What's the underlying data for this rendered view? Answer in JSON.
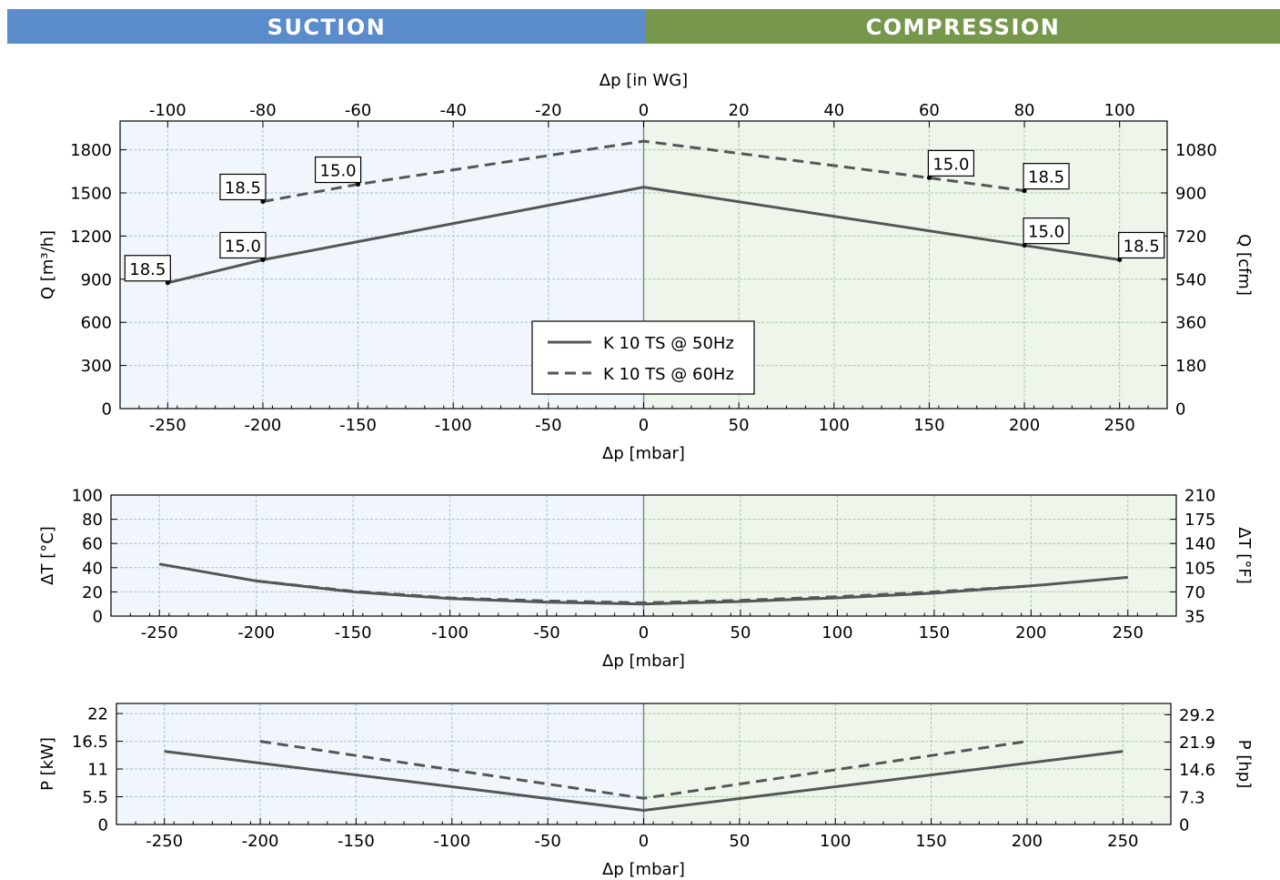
{
  "banner": {
    "left": "SUCTION",
    "right": "COMPRESSION"
  },
  "colors": {
    "suction_bg": "#f1f6fd",
    "compression_bg": "#eef5ea",
    "suction_banner": "#5a8ccc",
    "compression_banner": "#76974c",
    "series": "#535856",
    "grid_suction": "#a9bfd3",
    "grid_compression": "#a9c7a0"
  },
  "legend": {
    "solid_label": "K 10 TS @ 50Hz",
    "dashed_label": "K 10 TS @ 60Hz"
  },
  "chart_data": [
    {
      "type": "line",
      "title": "",
      "xlabel": "Δp [mbar]",
      "x2label": "Δp [in WG]",
      "ylabel": "Q [m³/h]",
      "y2label": "Q [cfm]",
      "xlim": [
        -275,
        275
      ],
      "ylim": [
        0,
        2000
      ],
      "y2lim": [
        0,
        1200
      ],
      "xticks": [
        -250,
        -200,
        -150,
        -100,
        -50,
        0,
        50,
        100,
        150,
        200,
        250
      ],
      "x2ticks": [
        -100,
        -80,
        -60,
        -40,
        -20,
        0,
        20,
        40,
        60,
        80,
        100
      ],
      "yticks": [
        0,
        300,
        600,
        900,
        1200,
        1500,
        1800
      ],
      "y2ticks": [
        0,
        180,
        360,
        540,
        720,
        900,
        1080
      ],
      "grid": true,
      "legend": "center",
      "series": [
        {
          "name": "K 10 TS @ 50Hz",
          "style": "solid",
          "x": [
            -250,
            -200,
            0,
            200,
            250
          ],
          "y": [
            875,
            1035,
            1540,
            1135,
            1035
          ]
        },
        {
          "name": "K 10 TS @ 60Hz",
          "style": "dashed",
          "x": [
            -200,
            -150,
            0,
            150,
            200
          ],
          "y": [
            1440,
            1560,
            1860,
            1605,
            1515
          ]
        }
      ],
      "annotations": [
        {
          "text": "18.5",
          "x": -250,
          "y": 875,
          "pos": "upper-left"
        },
        {
          "text": "15.0",
          "x": -200,
          "y": 1035,
          "pos": "upper-left"
        },
        {
          "text": "18.5",
          "x": -200,
          "y": 1440,
          "pos": "upper-left"
        },
        {
          "text": "15.0",
          "x": -150,
          "y": 1560,
          "pos": "upper-left"
        },
        {
          "text": "15.0",
          "x": 150,
          "y": 1605,
          "pos": "upper-right"
        },
        {
          "text": "18.5",
          "x": 200,
          "y": 1515,
          "pos": "upper-right"
        },
        {
          "text": "15.0",
          "x": 200,
          "y": 1135,
          "pos": "upper-right"
        },
        {
          "text": "18.5",
          "x": 250,
          "y": 1035,
          "pos": "upper-right"
        }
      ]
    },
    {
      "type": "line",
      "title": "",
      "xlabel": "Δp [mbar]",
      "ylabel": "ΔT [°C]",
      "y2label": "ΔT [°F]",
      "xlim": [
        -275,
        275
      ],
      "ylim": [
        0,
        100
      ],
      "y2lim": [
        35,
        210
      ],
      "xticks": [
        -250,
        -200,
        -150,
        -100,
        -50,
        0,
        50,
        100,
        150,
        200,
        250
      ],
      "yticks": [
        0,
        20,
        40,
        60,
        80,
        100
      ],
      "y2ticks": [
        35,
        70,
        105,
        140,
        175,
        210
      ],
      "grid": true,
      "series": [
        {
          "name": "K 10 TS @ 50Hz",
          "style": "solid",
          "x": [
            -250,
            -200,
            -150,
            -100,
            -50,
            0,
            50,
            100,
            150,
            200,
            250
          ],
          "y": [
            43,
            29,
            20,
            14.5,
            11.5,
            10,
            12,
            15,
            19,
            25,
            32
          ]
        },
        {
          "name": "K 10 TS @ 60Hz",
          "style": "dashed",
          "x": [
            -200,
            -150,
            -100,
            -50,
            0,
            50,
            100,
            150,
            200
          ],
          "y": [
            29,
            20.5,
            15,
            12.5,
            11,
            13,
            16,
            20,
            25
          ]
        }
      ]
    },
    {
      "type": "line",
      "title": "",
      "xlabel": "Δp [mbar]",
      "ylabel": "P [kW]",
      "y2label": "P [hp]",
      "xlim": [
        -275,
        275
      ],
      "ylim": [
        0,
        24
      ],
      "y2lim": [
        0,
        32.2
      ],
      "xticks": [
        -250,
        -200,
        -150,
        -100,
        -50,
        0,
        50,
        100,
        150,
        200,
        250
      ],
      "yticks": [
        0,
        5.5,
        11,
        16.5,
        22
      ],
      "ytick_labels": [
        "0",
        "5.5",
        "11",
        "16.5",
        "22"
      ],
      "y2ticks": [
        0,
        7.3,
        14.6,
        21.9,
        29.2
      ],
      "y2tick_labels": [
        "0",
        "7.3",
        "14.6",
        "21.9",
        "29.2"
      ],
      "grid": true,
      "series": [
        {
          "name": "K 10 TS @ 50Hz",
          "style": "solid",
          "x": [
            -250,
            0,
            250
          ],
          "y": [
            14.5,
            2.8,
            14.5
          ]
        },
        {
          "name": "K 10 TS @ 60Hz",
          "style": "dashed",
          "x": [
            -200,
            0,
            200
          ],
          "y": [
            16.5,
            5.2,
            16.5
          ]
        }
      ]
    }
  ]
}
